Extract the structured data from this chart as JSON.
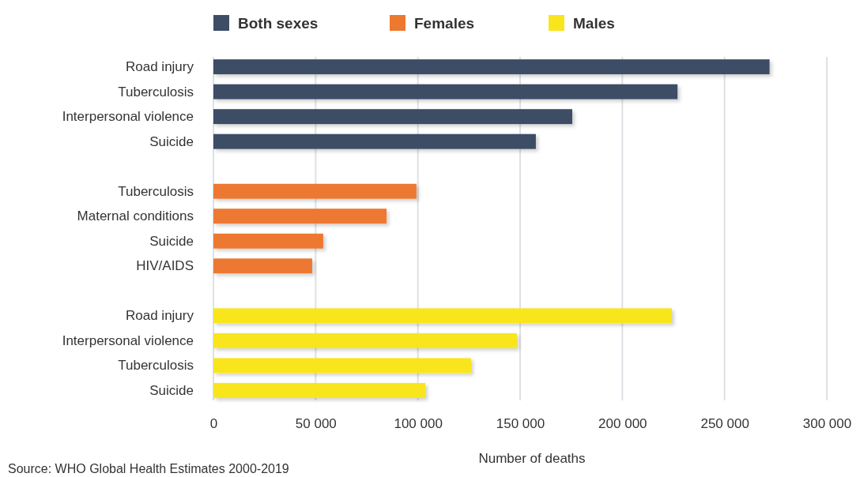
{
  "chart_data": {
    "type": "bar",
    "orientation": "horizontal",
    "xlabel": "Number of deaths",
    "categories": [
      "Road injury",
      "Tuberculosis",
      "Interpersonal violence",
      "Suicide",
      null,
      "Tuberculosis",
      "Maternal conditions",
      "Suicide",
      "HIV/AIDS",
      null,
      "Road injury",
      "Interpersonal violence",
      "Tuberculosis",
      "Suicide"
    ],
    "series": [
      {
        "name": "Both sexes",
        "color": "#3d4d66",
        "values": [
          272000,
          227000,
          175500,
          157700,
          null,
          null,
          null,
          null,
          null,
          null,
          null,
          null,
          null,
          null
        ]
      },
      {
        "name": "Females",
        "color": "#ed7830",
        "values": [
          null,
          null,
          null,
          null,
          null,
          99300,
          84700,
          53700,
          48300,
          null,
          null,
          null,
          null,
          null
        ]
      },
      {
        "name": "Males",
        "color": "#f9e51b",
        "values": [
          null,
          null,
          null,
          null,
          null,
          null,
          null,
          null,
          null,
          null,
          224200,
          148400,
          126000,
          103600
        ]
      }
    ],
    "xlim": [
      0,
      300000
    ],
    "xticks": [
      0,
      {
        "value": 50000,
        "label": "50 000"
      },
      {
        "value": 100000,
        "label": "100 000"
      },
      {
        "value": 150000,
        "label": "150 000"
      },
      {
        "value": 200000,
        "label": "200 000"
      },
      {
        "value": 250000,
        "label": "250 000"
      },
      {
        "value": 300000,
        "label": "300 000"
      }
    ],
    "grid": "x",
    "legend": "top",
    "annotations": [
      "Source: WHO Global Health Estimates 2000-2019"
    ]
  }
}
